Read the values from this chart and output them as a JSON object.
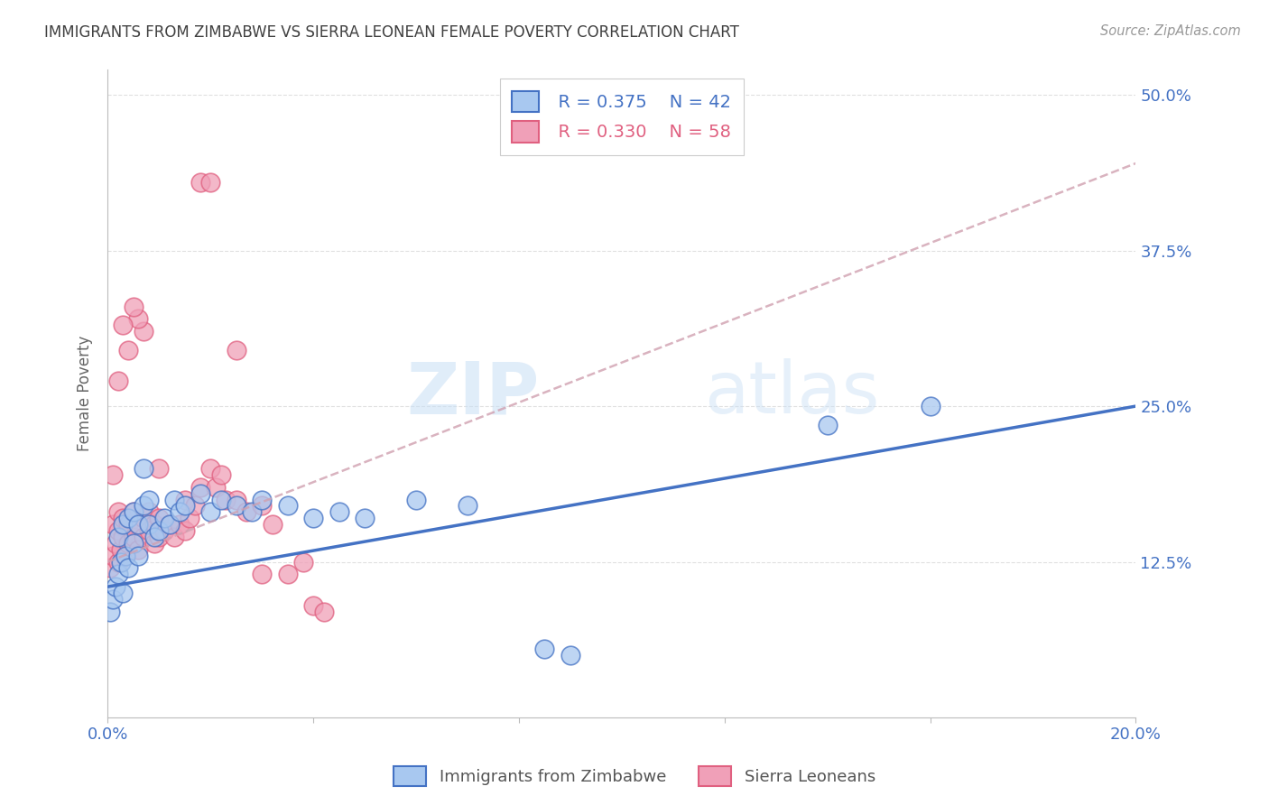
{
  "title": "IMMIGRANTS FROM ZIMBABWE VS SIERRA LEONEAN FEMALE POVERTY CORRELATION CHART",
  "source": "Source: ZipAtlas.com",
  "ylabel": "Female Poverty",
  "ytick_labels": [
    "12.5%",
    "25.0%",
    "37.5%",
    "50.0%"
  ],
  "ytick_values": [
    0.125,
    0.25,
    0.375,
    0.5
  ],
  "xmin": 0.0,
  "xmax": 0.2,
  "ymin": 0.0,
  "ymax": 0.52,
  "legend_r1": "R = 0.375",
  "legend_n1": "N = 42",
  "legend_r2": "R = 0.330",
  "legend_n2": "N = 58",
  "legend_label1": "Immigrants from Zimbabwe",
  "legend_label2": "Sierra Leoneans",
  "color_blue": "#A8C8F0",
  "color_pink": "#F0A0B8",
  "color_blue_line": "#4472C4",
  "color_pink_line": "#E06080",
  "color_axis_labels": "#4472C4",
  "title_color": "#404040",
  "watermark_zip": "ZIP",
  "watermark_atlas": "atlas",
  "grid_color": "#CCCCCC",
  "background_color": "#FFFFFF",
  "blue_scatter_x": [
    0.0005,
    0.001,
    0.0015,
    0.002,
    0.002,
    0.0025,
    0.003,
    0.003,
    0.0035,
    0.004,
    0.004,
    0.005,
    0.005,
    0.006,
    0.006,
    0.007,
    0.007,
    0.008,
    0.008,
    0.009,
    0.01,
    0.011,
    0.012,
    0.013,
    0.014,
    0.015,
    0.018,
    0.02,
    0.022,
    0.025,
    0.028,
    0.03,
    0.035,
    0.04,
    0.045,
    0.05,
    0.06,
    0.07,
    0.085,
    0.09,
    0.14,
    0.16
  ],
  "blue_scatter_y": [
    0.085,
    0.095,
    0.105,
    0.115,
    0.145,
    0.125,
    0.1,
    0.155,
    0.13,
    0.12,
    0.16,
    0.14,
    0.165,
    0.13,
    0.155,
    0.2,
    0.17,
    0.155,
    0.175,
    0.145,
    0.15,
    0.16,
    0.155,
    0.175,
    0.165,
    0.17,
    0.18,
    0.165,
    0.175,
    0.17,
    0.165,
    0.175,
    0.17,
    0.16,
    0.165,
    0.16,
    0.175,
    0.17,
    0.055,
    0.05,
    0.235,
    0.25
  ],
  "pink_scatter_x": [
    0.0005,
    0.001,
    0.001,
    0.0015,
    0.002,
    0.002,
    0.002,
    0.0025,
    0.003,
    0.003,
    0.0035,
    0.004,
    0.004,
    0.005,
    0.005,
    0.006,
    0.006,
    0.007,
    0.007,
    0.008,
    0.008,
    0.009,
    0.009,
    0.01,
    0.01,
    0.011,
    0.012,
    0.013,
    0.014,
    0.015,
    0.015,
    0.016,
    0.017,
    0.018,
    0.02,
    0.021,
    0.022,
    0.023,
    0.025,
    0.027,
    0.03,
    0.032,
    0.035,
    0.038,
    0.04,
    0.042,
    0.018,
    0.01,
    0.03,
    0.025,
    0.007,
    0.006,
    0.005,
    0.004,
    0.003,
    0.002,
    0.001,
    0.02
  ],
  "pink_scatter_y": [
    0.12,
    0.13,
    0.155,
    0.14,
    0.125,
    0.15,
    0.165,
    0.135,
    0.145,
    0.16,
    0.13,
    0.14,
    0.155,
    0.145,
    0.165,
    0.135,
    0.155,
    0.145,
    0.16,
    0.15,
    0.165,
    0.14,
    0.155,
    0.145,
    0.16,
    0.15,
    0.155,
    0.145,
    0.155,
    0.15,
    0.175,
    0.16,
    0.17,
    0.185,
    0.2,
    0.185,
    0.195,
    0.175,
    0.175,
    0.165,
    0.17,
    0.155,
    0.115,
    0.125,
    0.09,
    0.085,
    0.43,
    0.2,
    0.115,
    0.295,
    0.31,
    0.32,
    0.33,
    0.295,
    0.315,
    0.27,
    0.195,
    0.43
  ],
  "blue_line_x": [
    0.0,
    0.2
  ],
  "blue_line_y": [
    0.105,
    0.25
  ],
  "pink_line_x": [
    0.0,
    0.2
  ],
  "pink_line_y": [
    0.125,
    0.445
  ]
}
